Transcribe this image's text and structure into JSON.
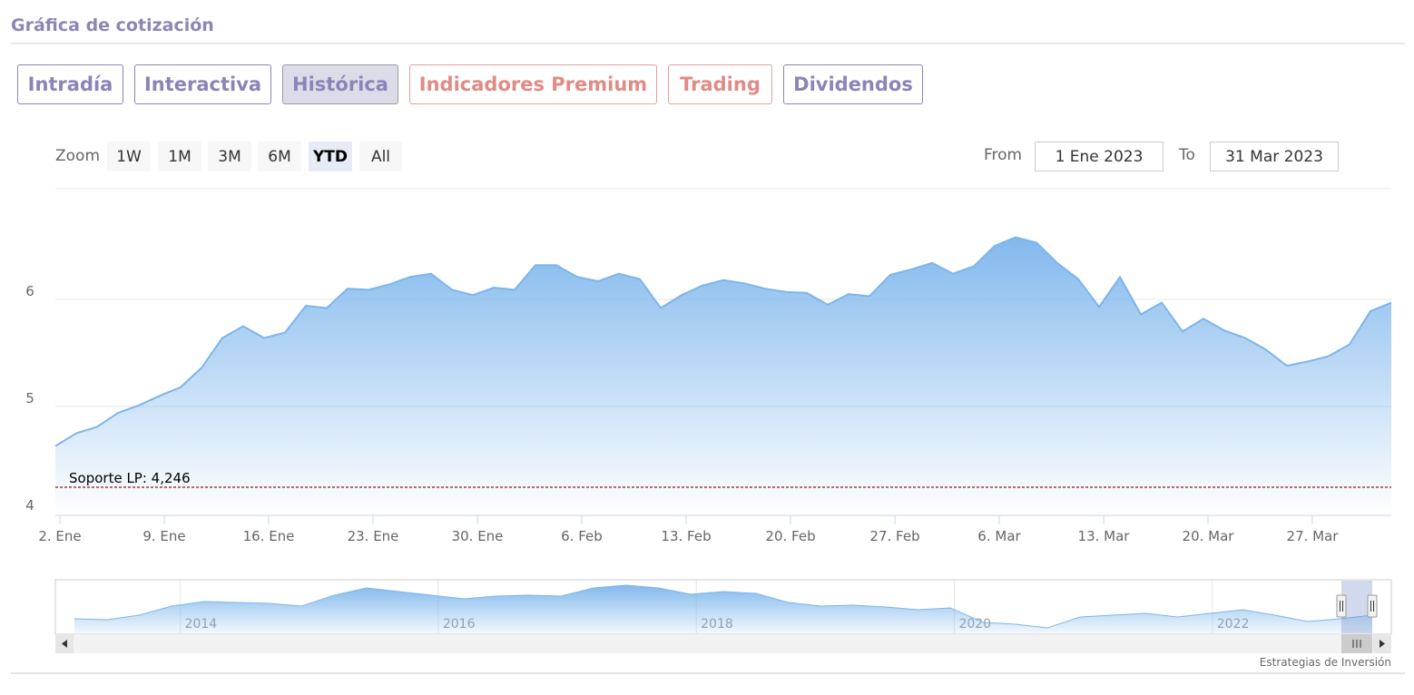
{
  "header": {
    "title": "Gráfica de cotización"
  },
  "tabs": [
    "Intradía",
    "Interactiva",
    "Histórica",
    "Indicadores Premium",
    "Trading",
    "Dividendos"
  ],
  "zoom": {
    "label": "Zoom",
    "buttons": [
      "1W",
      "1M",
      "3M",
      "6M",
      "YTD",
      "All"
    ]
  },
  "range": {
    "from_label": "From",
    "from": "1 Ene 2023",
    "to_label": "To",
    "to": "31 Mar 2023"
  },
  "footer": "Estrategias de Inversión",
  "chart_data": {
    "type": "area",
    "color": "#7cb5ec",
    "categories": [
      "2. Ene",
      null,
      null,
      null,
      null,
      "9. Ene",
      null,
      null,
      null,
      null,
      "16. Ene",
      null,
      null,
      null,
      null,
      "23. Ene",
      null,
      null,
      null,
      null,
      "30. Ene",
      null,
      null,
      null,
      null,
      "6. Feb",
      null,
      null,
      null,
      null,
      "13. Feb",
      null,
      null,
      null,
      null,
      "20. Feb",
      null,
      null,
      null,
      null,
      "27. Feb",
      null,
      null,
      null,
      null,
      "6. Mar",
      null,
      null,
      null,
      null,
      "13. Mar",
      null,
      null,
      null,
      null,
      "20. Mar",
      null,
      null,
      null,
      null,
      "27. Mar",
      null,
      null,
      null,
      null
    ],
    "values": [
      4.63,
      4.75,
      4.81,
      4.94,
      5.01,
      5.1,
      5.18,
      5.36,
      5.64,
      5.75,
      5.64,
      5.69,
      5.94,
      5.92,
      6.1,
      6.09,
      6.14,
      6.21,
      6.24,
      6.09,
      6.04,
      6.11,
      6.09,
      6.32,
      6.32,
      6.21,
      6.17,
      6.24,
      6.19,
      5.92,
      6.04,
      6.13,
      6.18,
      6.15,
      6.1,
      6.07,
      6.06,
      5.95,
      6.05,
      6.03,
      6.23,
      6.28,
      6.34,
      6.24,
      6.31,
      6.5,
      6.58,
      6.53,
      6.34,
      6.19,
      5.93,
      6.21,
      5.86,
      5.97,
      5.7,
      5.82,
      5.71,
      5.64,
      5.53,
      5.38,
      5.42,
      5.47,
      5.58,
      5.89,
      5.97
    ],
    "ylim": [
      4,
      7
    ],
    "yticks": [
      4,
      5,
      6
    ],
    "grid": true,
    "annotations": [
      {
        "label": "Soporte LP: 4,246",
        "value": 4.246,
        "color": "#8b1a1a"
      }
    ],
    "navigator": {
      "xlim": [
        2013.18,
        2023.24
      ],
      "xticks": [
        2014,
        2016,
        2018,
        2020,
        2022
      ],
      "ylim": [
        3,
        9
      ],
      "values": [
        4.66,
        4.55,
        5.07,
        6.1,
        6.62,
        6.52,
        6.41,
        6.1,
        7.34,
        8.17,
        7.76,
        7.34,
        6.93,
        7.24,
        7.34,
        7.24,
        8.17,
        8.48,
        8.17,
        7.45,
        7.76,
        7.55,
        6.52,
        6.1,
        6.21,
        6.0,
        5.69,
        5.9,
        4.24,
        4.03,
        3.62,
        4.86,
        5.07,
        5.28,
        4.86,
        5.28,
        5.69,
        5.07,
        4.34,
        4.66,
        5.07
      ]
    }
  }
}
